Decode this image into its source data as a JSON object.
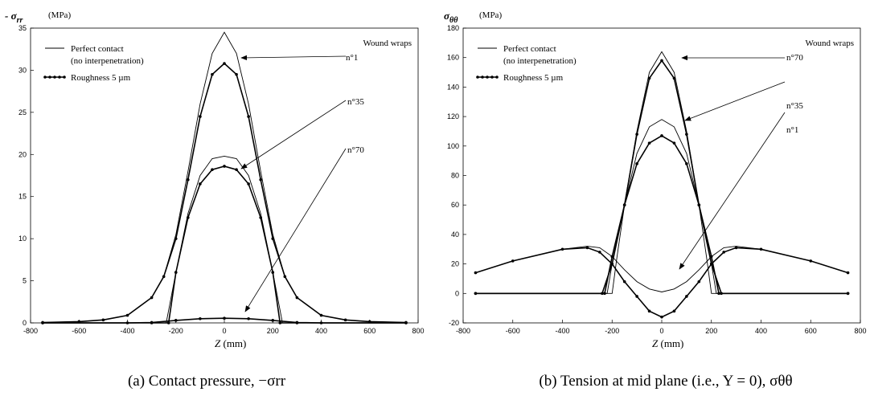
{
  "chart_data": [
    {
      "type": "line",
      "ylabel_html": "- σ",
      "ylabel_sub": "rr",
      "ylabel_unit": "(MPa)",
      "xlabel": "Z",
      "xlabel_unit": "(mm)",
      "xlim": [
        -800,
        800
      ],
      "ylim": [
        0,
        35
      ],
      "xticks": [
        -800,
        -600,
        -400,
        -200,
        0,
        200,
        400,
        600,
        800
      ],
      "yticks": [
        0,
        5,
        10,
        15,
        20,
        25,
        30,
        35
      ],
      "caption": "(a) Contact pressure, −σrr",
      "legend": {
        "line_label": "Perfect contact",
        "line_label2": "(no interpenetration)",
        "marker_label": "Roughness 5 µm",
        "group_title": "Wound wraps"
      },
      "annotations": [
        "n°1",
        "n°35",
        "n°70"
      ],
      "series": [
        {
          "name": "Perfect contact",
          "wrap": "n°1",
          "style": "line",
          "x": [
            -750,
            -600,
            -500,
            -400,
            -300,
            -250,
            -200,
            -150,
            -100,
            -50,
            0,
            50,
            100,
            150,
            200,
            250,
            300,
            400,
            500,
            600,
            750
          ],
          "y": [
            0.05,
            0.15,
            0.35,
            0.9,
            3,
            5.5,
            10.5,
            18,
            26,
            32,
            34.5,
            32,
            26,
            18,
            10.5,
            5.5,
            3,
            0.9,
            0.35,
            0.15,
            0.05
          ]
        },
        {
          "name": "Roughness 5 µm",
          "wrap": "n°1",
          "style": "marker",
          "x": [
            -750,
            -600,
            -500,
            -400,
            -300,
            -250,
            -200,
            -150,
            -100,
            -50,
            0,
            50,
            100,
            150,
            200,
            250,
            300,
            400,
            500,
            600,
            750
          ],
          "y": [
            0.05,
            0.15,
            0.35,
            0.9,
            3,
            5.5,
            10,
            17,
            24.5,
            29.5,
            30.8,
            29.5,
            24.5,
            17,
            10,
            5.5,
            3,
            0.9,
            0.35,
            0.15,
            0.05
          ]
        },
        {
          "name": "Perfect contact",
          "wrap": "n°35",
          "style": "line",
          "x": [
            -750,
            -300,
            -240,
            -200,
            -150,
            -100,
            -50,
            0,
            50,
            100,
            150,
            200,
            240,
            300,
            750
          ],
          "y": [
            0,
            0,
            0,
            6,
            13,
            17.5,
            19.5,
            19.8,
            19.5,
            17.5,
            13,
            6,
            0,
            0,
            0
          ]
        },
        {
          "name": "Roughness 5 µm",
          "wrap": "n°35",
          "style": "marker",
          "x": [
            -750,
            -300,
            -230,
            -200,
            -150,
            -100,
            -50,
            0,
            50,
            100,
            150,
            200,
            230,
            300,
            750
          ],
          "y": [
            0,
            0,
            0,
            6,
            12.5,
            16.5,
            18.2,
            18.6,
            18.2,
            16.5,
            12.5,
            6,
            0,
            0,
            0
          ]
        },
        {
          "name": "Perfect contact",
          "wrap": "n°70",
          "style": "line",
          "x": [
            -750,
            -400,
            -300,
            -200,
            -100,
            0,
            100,
            200,
            300,
            400,
            750
          ],
          "y": [
            0,
            0,
            0.05,
            0.3,
            0.5,
            0.55,
            0.5,
            0.3,
            0.05,
            0,
            0
          ]
        },
        {
          "name": "Roughness 5 µm",
          "wrap": "n°70",
          "style": "marker",
          "x": [
            -750,
            -400,
            -300,
            -200,
            -100,
            0,
            100,
            200,
            300,
            400,
            750
          ],
          "y": [
            0,
            0,
            0.05,
            0.3,
            0.5,
            0.55,
            0.5,
            0.3,
            0.05,
            0,
            0
          ]
        }
      ]
    },
    {
      "type": "line",
      "ylabel_html": "σ",
      "ylabel_sub": "θθ",
      "ylabel_unit": "(MPa)",
      "xlabel": "Z",
      "xlabel_unit": "(mm)",
      "xlim": [
        -800,
        800
      ],
      "ylim": [
        -20,
        180
      ],
      "xticks": [
        -800,
        -600,
        -400,
        -200,
        0,
        200,
        400,
        600,
        800
      ],
      "yticks": [
        -20,
        0,
        20,
        40,
        60,
        80,
        100,
        120,
        140,
        160,
        180
      ],
      "caption": "(b) Tension at mid plane (i.e., Y = 0), σθθ",
      "legend": {
        "line_label": "Perfect contact",
        "line_label2": "(no interpenetration)",
        "marker_label": "Roughness 5 µm",
        "group_title": "Wound wraps"
      },
      "annotations": [
        "n°70",
        "n°35",
        "n°1"
      ],
      "series": [
        {
          "name": "Perfect contact",
          "wrap": "n°70",
          "style": "line",
          "x": [
            -750,
            -220,
            -200,
            -150,
            -100,
            -50,
            0,
            50,
            100,
            150,
            200,
            220,
            750
          ],
          "y": [
            0,
            0,
            20,
            60,
            110,
            150,
            164,
            150,
            110,
            60,
            20,
            0,
            0
          ]
        },
        {
          "name": "Roughness 5 µm",
          "wrap": "n°70",
          "style": "marker",
          "x": [
            -750,
            -240,
            -200,
            -150,
            -100,
            -50,
            0,
            50,
            100,
            150,
            200,
            240,
            750
          ],
          "y": [
            0,
            0,
            20,
            60,
            108,
            146,
            158,
            146,
            108,
            60,
            20,
            0,
            0
          ]
        },
        {
          "name": "Perfect contact",
          "wrap": "n°35",
          "style": "line",
          "x": [
            -750,
            -200,
            -180,
            -150,
            -100,
            -50,
            0,
            50,
            100,
            150,
            180,
            200,
            750
          ],
          "y": [
            0,
            0,
            25,
            60,
            95,
            113,
            118,
            113,
            95,
            60,
            25,
            0,
            0
          ]
        },
        {
          "name": "Roughness 5 µm",
          "wrap": "n°35",
          "style": "marker",
          "x": [
            -750,
            -230,
            -200,
            -150,
            -100,
            -50,
            0,
            50,
            100,
            150,
            200,
            230,
            750
          ],
          "y": [
            0,
            0,
            25,
            60,
            88,
            102,
            107,
            102,
            88,
            60,
            25,
            0,
            0
          ]
        },
        {
          "name": "Perfect contact",
          "wrap": "n°1",
          "style": "line",
          "x": [
            -750,
            -600,
            -400,
            -300,
            -250,
            -200,
            -150,
            -100,
            -50,
            0,
            50,
            100,
            150,
            200,
            250,
            300,
            400,
            600,
            750
          ],
          "y": [
            14,
            22,
            30,
            32,
            31,
            25,
            16,
            8,
            3,
            1,
            3,
            8,
            16,
            25,
            31,
            32,
            30,
            22,
            14
          ]
        },
        {
          "name": "Roughness 5 µm",
          "wrap": "n°1",
          "style": "marker",
          "x": [
            -750,
            -600,
            -400,
            -300,
            -250,
            -200,
            -150,
            -100,
            -50,
            0,
            50,
            100,
            150,
            200,
            250,
            300,
            400,
            600,
            750
          ],
          "y": [
            14,
            22,
            30,
            31,
            28,
            20,
            8,
            -2,
            -12,
            -16,
            -12,
            -2,
            8,
            20,
            28,
            31,
            30,
            22,
            14
          ]
        }
      ]
    }
  ]
}
